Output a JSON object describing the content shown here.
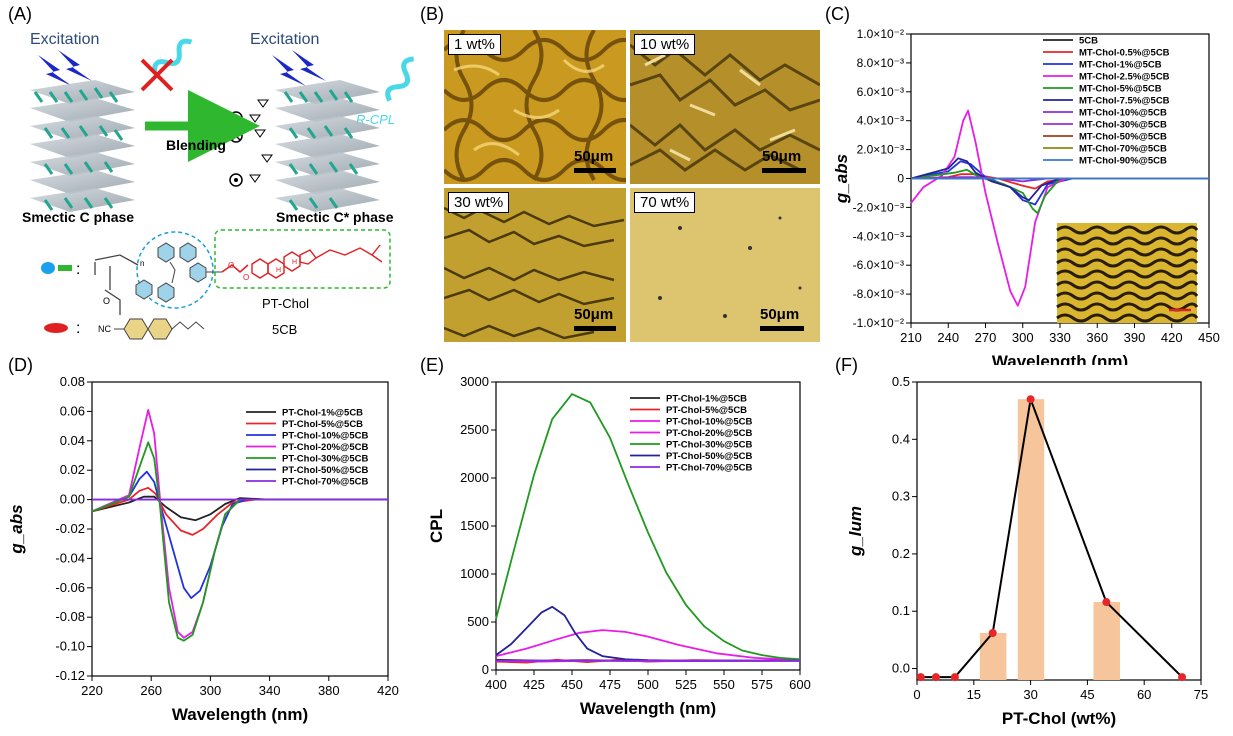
{
  "panels": {
    "A": "(A)",
    "B": "(B)",
    "C": "(C)",
    "D": "(D)",
    "E": "(E)",
    "F": "(F)"
  },
  "schematic": {
    "excitation_left": "Excitation",
    "excitation_right": "Excitation",
    "blending": "Blending",
    "rcpl": "R-CPL",
    "phase_left": "Smectic C phase",
    "phase_right": "Smectic C* phase",
    "polymer_name": "PT-Chol",
    "lc_name": "5CB",
    "colon": ":",
    "nc": "NC",
    "o": "O",
    "n": "n",
    "h": "H"
  },
  "micrographs": [
    {
      "label": "1 wt%",
      "scale": "50μm",
      "tone": "#c99a1f"
    },
    {
      "label": "10 wt%",
      "scale": "50μm",
      "tone": "#b58f2a"
    },
    {
      "label": "30 wt%",
      "scale": "50μm",
      "tone": "#c2a030"
    },
    {
      "label": "70 wt%",
      "scale": "50μm",
      "tone": "#ddc46e"
    }
  ],
  "colors": {
    "black": "#222222",
    "red": "#e8262a",
    "blue": "#2233dd",
    "magenta": "#e81ce8",
    "green": "#1f9a1f",
    "navy": "#22229a",
    "violet": "#8a2be2",
    "brown": "#a0401a",
    "olive": "#8a8a10",
    "lightblue": "#3a78d8",
    "bar": "#f7c59b",
    "dot": "#e8262a"
  },
  "chart_data": [
    {
      "panel": "C",
      "type": "line",
      "xlabel": "Wavelength (nm)",
      "ylabel": "g_abs",
      "xlim": [
        210,
        450
      ],
      "ylim": [
        -0.01,
        0.01
      ],
      "xticks": [
        "210",
        "240",
        "270",
        "300",
        "330",
        "360",
        "390",
        "420",
        "450"
      ],
      "yticks": [
        "1.0×10⁻²",
        "8.0×10⁻³",
        "6.0×10⁻³",
        "4.0×10⁻³",
        "2.0×10⁻³",
        "0",
        "-2.0×10⁻³",
        "-4.0×10⁻³",
        "-6.0×10⁻³",
        "-8.0×10⁻³",
        "-1.0×10⁻²"
      ],
      "series": [
        {
          "name": "5CB",
          "color": "#222222",
          "x": [
            210,
            250,
            450
          ],
          "y": [
            0,
            0,
            0
          ]
        },
        {
          "name": "MT-Chol-0.5%@5CB",
          "color": "#e8262a",
          "x": [
            210,
            240,
            250,
            260,
            280,
            300,
            310,
            320,
            340,
            450
          ],
          "y": [
            0,
            0.0001,
            0.0003,
            0.0003,
            0,
            -0.0005,
            -0.0007,
            -0.0002,
            0,
            0
          ]
        },
        {
          "name": "MT-Chol-1%@5CB",
          "color": "#2233dd",
          "x": [
            210,
            240,
            250,
            258,
            270,
            290,
            300,
            310,
            320,
            340,
            450
          ],
          "y": [
            0,
            0.0005,
            0.0012,
            0.001,
            0.0001,
            -0.0006,
            -0.0015,
            -0.0018,
            -0.0004,
            0,
            0
          ]
        },
        {
          "name": "MT-Chol-2.5%@5CB",
          "color": "#e81ce8",
          "x": [
            210,
            220,
            235,
            245,
            252,
            256,
            262,
            270,
            280,
            290,
            296,
            302,
            310,
            320,
            335,
            360,
            450
          ],
          "y": [
            -0.0017,
            -0.0006,
            0.0002,
            0.0015,
            0.004,
            0.0047,
            0.0025,
            -0.001,
            -0.0045,
            -0.0078,
            -0.0088,
            -0.0075,
            -0.003,
            -0.0006,
            0,
            0,
            0
          ]
        },
        {
          "name": "MT-Chol-5%@5CB",
          "color": "#1f9a1f",
          "x": [
            210,
            245,
            255,
            265,
            285,
            300,
            308,
            312,
            318,
            330,
            450
          ],
          "y": [
            0,
            0.0004,
            0.0006,
            0.0001,
            -0.0004,
            -0.001,
            -0.0021,
            -0.0024,
            -0.0012,
            0,
            0
          ]
        },
        {
          "name": "MT-Chol-7.5%@5CB",
          "color": "#22229a",
          "x": [
            210,
            240,
            248,
            255,
            262,
            275,
            290,
            300,
            305,
            315,
            330,
            450
          ],
          "y": [
            0,
            0.0007,
            0.0014,
            0.0012,
            0.0004,
            -0.0002,
            -0.0006,
            -0.0013,
            -0.0015,
            -0.0005,
            0,
            0
          ]
        },
        {
          "name": "MT-Chol-10%@5CB",
          "color": "#8a2be2",
          "x": [
            210,
            250,
            260,
            280,
            300,
            320,
            450
          ],
          "y": [
            0,
            0.0001,
            0.0001,
            0,
            -0.0002,
            0,
            0
          ]
        },
        {
          "name": "MT-Chol-30%@5CB",
          "color": "#9932cc",
          "x": [
            210,
            450
          ],
          "y": [
            0,
            0
          ]
        },
        {
          "name": "MT-Chol-50%@5CB",
          "color": "#a0401a",
          "x": [
            210,
            450
          ],
          "y": [
            0,
            0
          ]
        },
        {
          "name": "MT-Chol-70%@5CB",
          "color": "#8a8a10",
          "x": [
            210,
            450
          ],
          "y": [
            0,
            0
          ]
        },
        {
          "name": "MT-Chol-90%@5CB",
          "color": "#3a78d8",
          "x": [
            210,
            450
          ],
          "y": [
            0,
            0
          ]
        }
      ]
    },
    {
      "panel": "D",
      "type": "line",
      "xlabel": "Wavelength (nm)",
      "ylabel": "g_abs",
      "xlim": [
        220,
        420
      ],
      "ylim": [
        -0.12,
        0.08
      ],
      "xticks": [
        "220",
        "260",
        "300",
        "340",
        "380",
        "420"
      ],
      "yticks": [
        "0.08",
        "0.06",
        "0.04",
        "0.02",
        "0.00",
        "-0.02",
        "-0.04",
        "-0.06",
        "-0.08",
        "-0.10",
        "-0.12"
      ],
      "series": [
        {
          "name": "PT-Chol-1%@5CB",
          "color": "#222222",
          "x": [
            220,
            245,
            255,
            262,
            270,
            280,
            290,
            300,
            310,
            320,
            340,
            420
          ],
          "y": [
            -0.008,
            -0.002,
            0.002,
            0.002,
            -0.005,
            -0.012,
            -0.014,
            -0.01,
            -0.003,
            0.001,
            0,
            0
          ]
        },
        {
          "name": "PT-Chol-5%@5CB",
          "color": "#e8262a",
          "x": [
            220,
            245,
            252,
            258,
            263,
            270,
            280,
            288,
            295,
            305,
            315,
            330,
            420
          ],
          "y": [
            -0.008,
            0,
            0.006,
            0.008,
            0.004,
            -0.01,
            -0.021,
            -0.024,
            -0.02,
            -0.01,
            -0.002,
            0,
            0
          ]
        },
        {
          "name": "PT-Chol-10%@5CB",
          "color": "#2233dd",
          "x": [
            220,
            245,
            252,
            257,
            262,
            268,
            275,
            282,
            287,
            293,
            300,
            308,
            315,
            325,
            420
          ],
          "y": [
            -0.008,
            0.002,
            0.014,
            0.019,
            0.012,
            -0.01,
            -0.035,
            -0.06,
            -0.067,
            -0.062,
            -0.045,
            -0.018,
            -0.003,
            0,
            0
          ]
        },
        {
          "name": "PT-Chol-20%@5CB",
          "color": "#e81ce8",
          "x": [
            220,
            245,
            252,
            258,
            262,
            266,
            272,
            278,
            282,
            288,
            295,
            303,
            310,
            320,
            420
          ],
          "y": [
            -0.008,
            0.003,
            0.035,
            0.061,
            0.045,
            0,
            -0.06,
            -0.09,
            -0.094,
            -0.09,
            -0.07,
            -0.035,
            -0.01,
            0,
            0
          ]
        },
        {
          "name": "PT-Chol-30%@5CB",
          "color": "#1f9a1f",
          "x": [
            220,
            245,
            252,
            258,
            262,
            266,
            272,
            278,
            282,
            288,
            295,
            303,
            310,
            320,
            420
          ],
          "y": [
            -0.008,
            0.002,
            0.022,
            0.039,
            0.028,
            -0.005,
            -0.07,
            -0.094,
            -0.096,
            -0.092,
            -0.07,
            -0.035,
            -0.01,
            0,
            0
          ]
        },
        {
          "name": "PT-Chol-50%@5CB",
          "color": "#22229a",
          "x": [
            220,
            420
          ],
          "y": [
            0,
            0
          ]
        },
        {
          "name": "PT-Chol-70%@5CB",
          "color": "#8a2be2",
          "x": [
            220,
            420
          ],
          "y": [
            0,
            0
          ]
        }
      ]
    },
    {
      "panel": "E",
      "type": "line",
      "xlabel": "Wavelength (nm)",
      "ylabel": "CPL",
      "xlim": [
        400,
        600
      ],
      "ylim": [
        -100,
        3000
      ],
      "xticks": [
        "400",
        "425",
        "450",
        "475",
        "500",
        "525",
        "550",
        "575",
        "600"
      ],
      "yticks": [
        "3000",
        "2500",
        "2000",
        "1500",
        "1000",
        "500",
        "0"
      ],
      "series": [
        {
          "name": "PT-Chol-1%@5CB",
          "color": "#222222",
          "x": [
            400,
            430,
            460,
            500,
            550,
            600
          ],
          "y": [
            10,
            0,
            5,
            -5,
            0,
            0
          ]
        },
        {
          "name": "PT-Chol-5%@5CB",
          "color": "#e8262a",
          "x": [
            400,
            420,
            440,
            460,
            480,
            500,
            530,
            560,
            600
          ],
          "y": [
            -10,
            -20,
            10,
            -15,
            10,
            -10,
            5,
            0,
            0
          ]
        },
        {
          "name": "PT-Chol-10%@5CB",
          "color": "#e81ce8",
          "x": [
            400,
            420,
            440,
            455,
            470,
            485,
            500,
            520,
            545,
            570,
            600
          ],
          "y": [
            50,
            130,
            230,
            300,
            330,
            310,
            260,
            170,
            80,
            30,
            10
          ]
        },
        {
          "name": "PT-Chol-20%@5CB",
          "color": "#e81ce8",
          "x": [
            400,
            430,
            460,
            500,
            600
          ],
          "y": [
            0,
            -10,
            0,
            -5,
            0
          ]
        },
        {
          "name": "PT-Chol-30%@5CB",
          "color": "#1f9a1f",
          "x": [
            400,
            412,
            425,
            437,
            450,
            462,
            475,
            487,
            500,
            512,
            525,
            537,
            550,
            562,
            575,
            587,
            600
          ],
          "y": [
            450,
            1200,
            2000,
            2600,
            2870,
            2780,
            2400,
            1900,
            1380,
            950,
            600,
            370,
            210,
            110,
            60,
            30,
            15
          ]
        },
        {
          "name": "PT-Chol-50%@5CB",
          "color": "#22229a",
          "x": [
            400,
            410,
            420,
            430,
            437,
            445,
            452,
            460,
            470,
            485,
            500,
            520,
            600
          ],
          "y": [
            60,
            180,
            350,
            520,
            580,
            490,
            300,
            130,
            50,
            15,
            5,
            0,
            0
          ]
        },
        {
          "name": "PT-Chol-70%@5CB",
          "color": "#8a2be2",
          "x": [
            400,
            600
          ],
          "y": [
            0,
            0
          ]
        }
      ]
    },
    {
      "panel": "F",
      "type": "bar",
      "xlabel": "PT-Chol (wt%)",
      "ylabel": "g_lum",
      "xlim": [
        0,
        75
      ],
      "ylim": [
        -0.02,
        0.5
      ],
      "xticks": [
        "0",
        "15",
        "30",
        "45",
        "60",
        "75"
      ],
      "yticks": [
        "0.5",
        "0.4",
        "0.3",
        "0.2",
        "0.1",
        "0.0"
      ],
      "x": [
        1,
        5,
        10,
        20,
        30,
        50,
        70
      ],
      "values": [
        -0.015,
        -0.015,
        -0.015,
        0.062,
        0.47,
        0.116,
        -0.015
      ]
    }
  ]
}
